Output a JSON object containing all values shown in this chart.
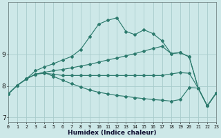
{
  "xlabel": "Humidex (Indice chaleur)",
  "background_color": "#cde8e8",
  "grid_color": "#a8cccc",
  "line_color": "#2d7b6e",
  "xlim": [
    0,
    23
  ],
  "ylim": [
    6.85,
    10.65
  ],
  "yticks": [
    7,
    8,
    9
  ],
  "xticks": [
    0,
    1,
    2,
    3,
    4,
    5,
    6,
    7,
    8,
    9,
    10,
    11,
    12,
    13,
    14,
    15,
    16,
    17,
    18,
    19,
    20,
    21,
    22,
    23
  ],
  "lines": [
    {
      "x": [
        0,
        1,
        2,
        3,
        4,
        5,
        6,
        7,
        8,
        9,
        10,
        11,
        12,
        13,
        14,
        15,
        16,
        17,
        18,
        19,
        20,
        21,
        22,
        23
      ],
      "y": [
        7.75,
        8.02,
        8.22,
        8.48,
        8.6,
        8.7,
        8.82,
        8.93,
        9.15,
        9.55,
        9.95,
        10.07,
        10.15,
        9.72,
        9.62,
        9.77,
        9.65,
        9.42,
        9.02,
        9.05,
        8.92,
        7.93,
        7.37,
        7.78
      ]
    },
    {
      "x": [
        0,
        1,
        2,
        3,
        4,
        5,
        6,
        7,
        8,
        9,
        10,
        11,
        12,
        13,
        14,
        15,
        16,
        17,
        18,
        19,
        20,
        21,
        22,
        23
      ],
      "y": [
        7.75,
        8.02,
        8.22,
        8.37,
        8.4,
        8.37,
        8.33,
        8.33,
        8.33,
        8.33,
        8.33,
        8.33,
        8.33,
        8.33,
        8.33,
        8.33,
        8.33,
        8.33,
        8.38,
        8.42,
        8.4,
        7.93,
        7.37,
        7.78
      ]
    },
    {
      "x": [
        0,
        1,
        2,
        3,
        4,
        5,
        6,
        7,
        8,
        9,
        10,
        11,
        12,
        13,
        14,
        15,
        16,
        17,
        18,
        19,
        20,
        21,
        22,
        23
      ],
      "y": [
        7.75,
        8.02,
        8.22,
        8.37,
        8.43,
        8.48,
        8.52,
        8.57,
        8.63,
        8.68,
        8.75,
        8.82,
        8.88,
        8.95,
        9.02,
        9.1,
        9.18,
        9.25,
        9.02,
        9.05,
        8.92,
        7.93,
        7.37,
        7.78
      ]
    },
    {
      "x": [
        0,
        1,
        2,
        3,
        4,
        5,
        6,
        7,
        8,
        9,
        10,
        11,
        12,
        13,
        14,
        15,
        16,
        17,
        18,
        19,
        20,
        21,
        22,
        23
      ],
      "y": [
        7.75,
        8.02,
        8.22,
        8.37,
        8.42,
        8.3,
        8.18,
        8.07,
        7.97,
        7.87,
        7.8,
        7.75,
        7.7,
        7.67,
        7.63,
        7.6,
        7.57,
        7.55,
        7.52,
        7.57,
        7.95,
        7.93,
        7.37,
        7.78
      ]
    }
  ]
}
